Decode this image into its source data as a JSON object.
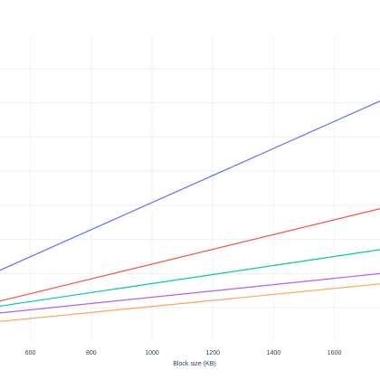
{
  "chart_data": {
    "type": "line",
    "xlabel": "Block size (KB)",
    "ylabel": "",
    "xlim": [
      500,
      1750
    ],
    "ylim": [
      0,
      9
    ],
    "x_ticks": [
      600,
      800,
      1000,
      1200,
      1400,
      1600
    ],
    "y_grid": [
      1,
      2,
      3,
      4,
      5,
      6,
      7,
      8
    ],
    "grid": true,
    "series": [
      {
        "color": "#636efa",
        "x": [
          500,
          1750
        ],
        "y": [
          2.1,
          7.05
        ]
      },
      {
        "color": "#ef553b",
        "x": [
          500,
          1750
        ],
        "y": [
          1.2,
          3.9
        ]
      },
      {
        "color": "#00cc96",
        "x": [
          500,
          1750
        ],
        "y": [
          1.05,
          2.7
        ]
      },
      {
        "color": "#ab63fa",
        "x": [
          500,
          1750
        ],
        "y": [
          0.85,
          2.0
        ]
      },
      {
        "color": "#ffa15a",
        "x": [
          500,
          1750
        ],
        "y": [
          0.6,
          1.7
        ]
      }
    ]
  }
}
